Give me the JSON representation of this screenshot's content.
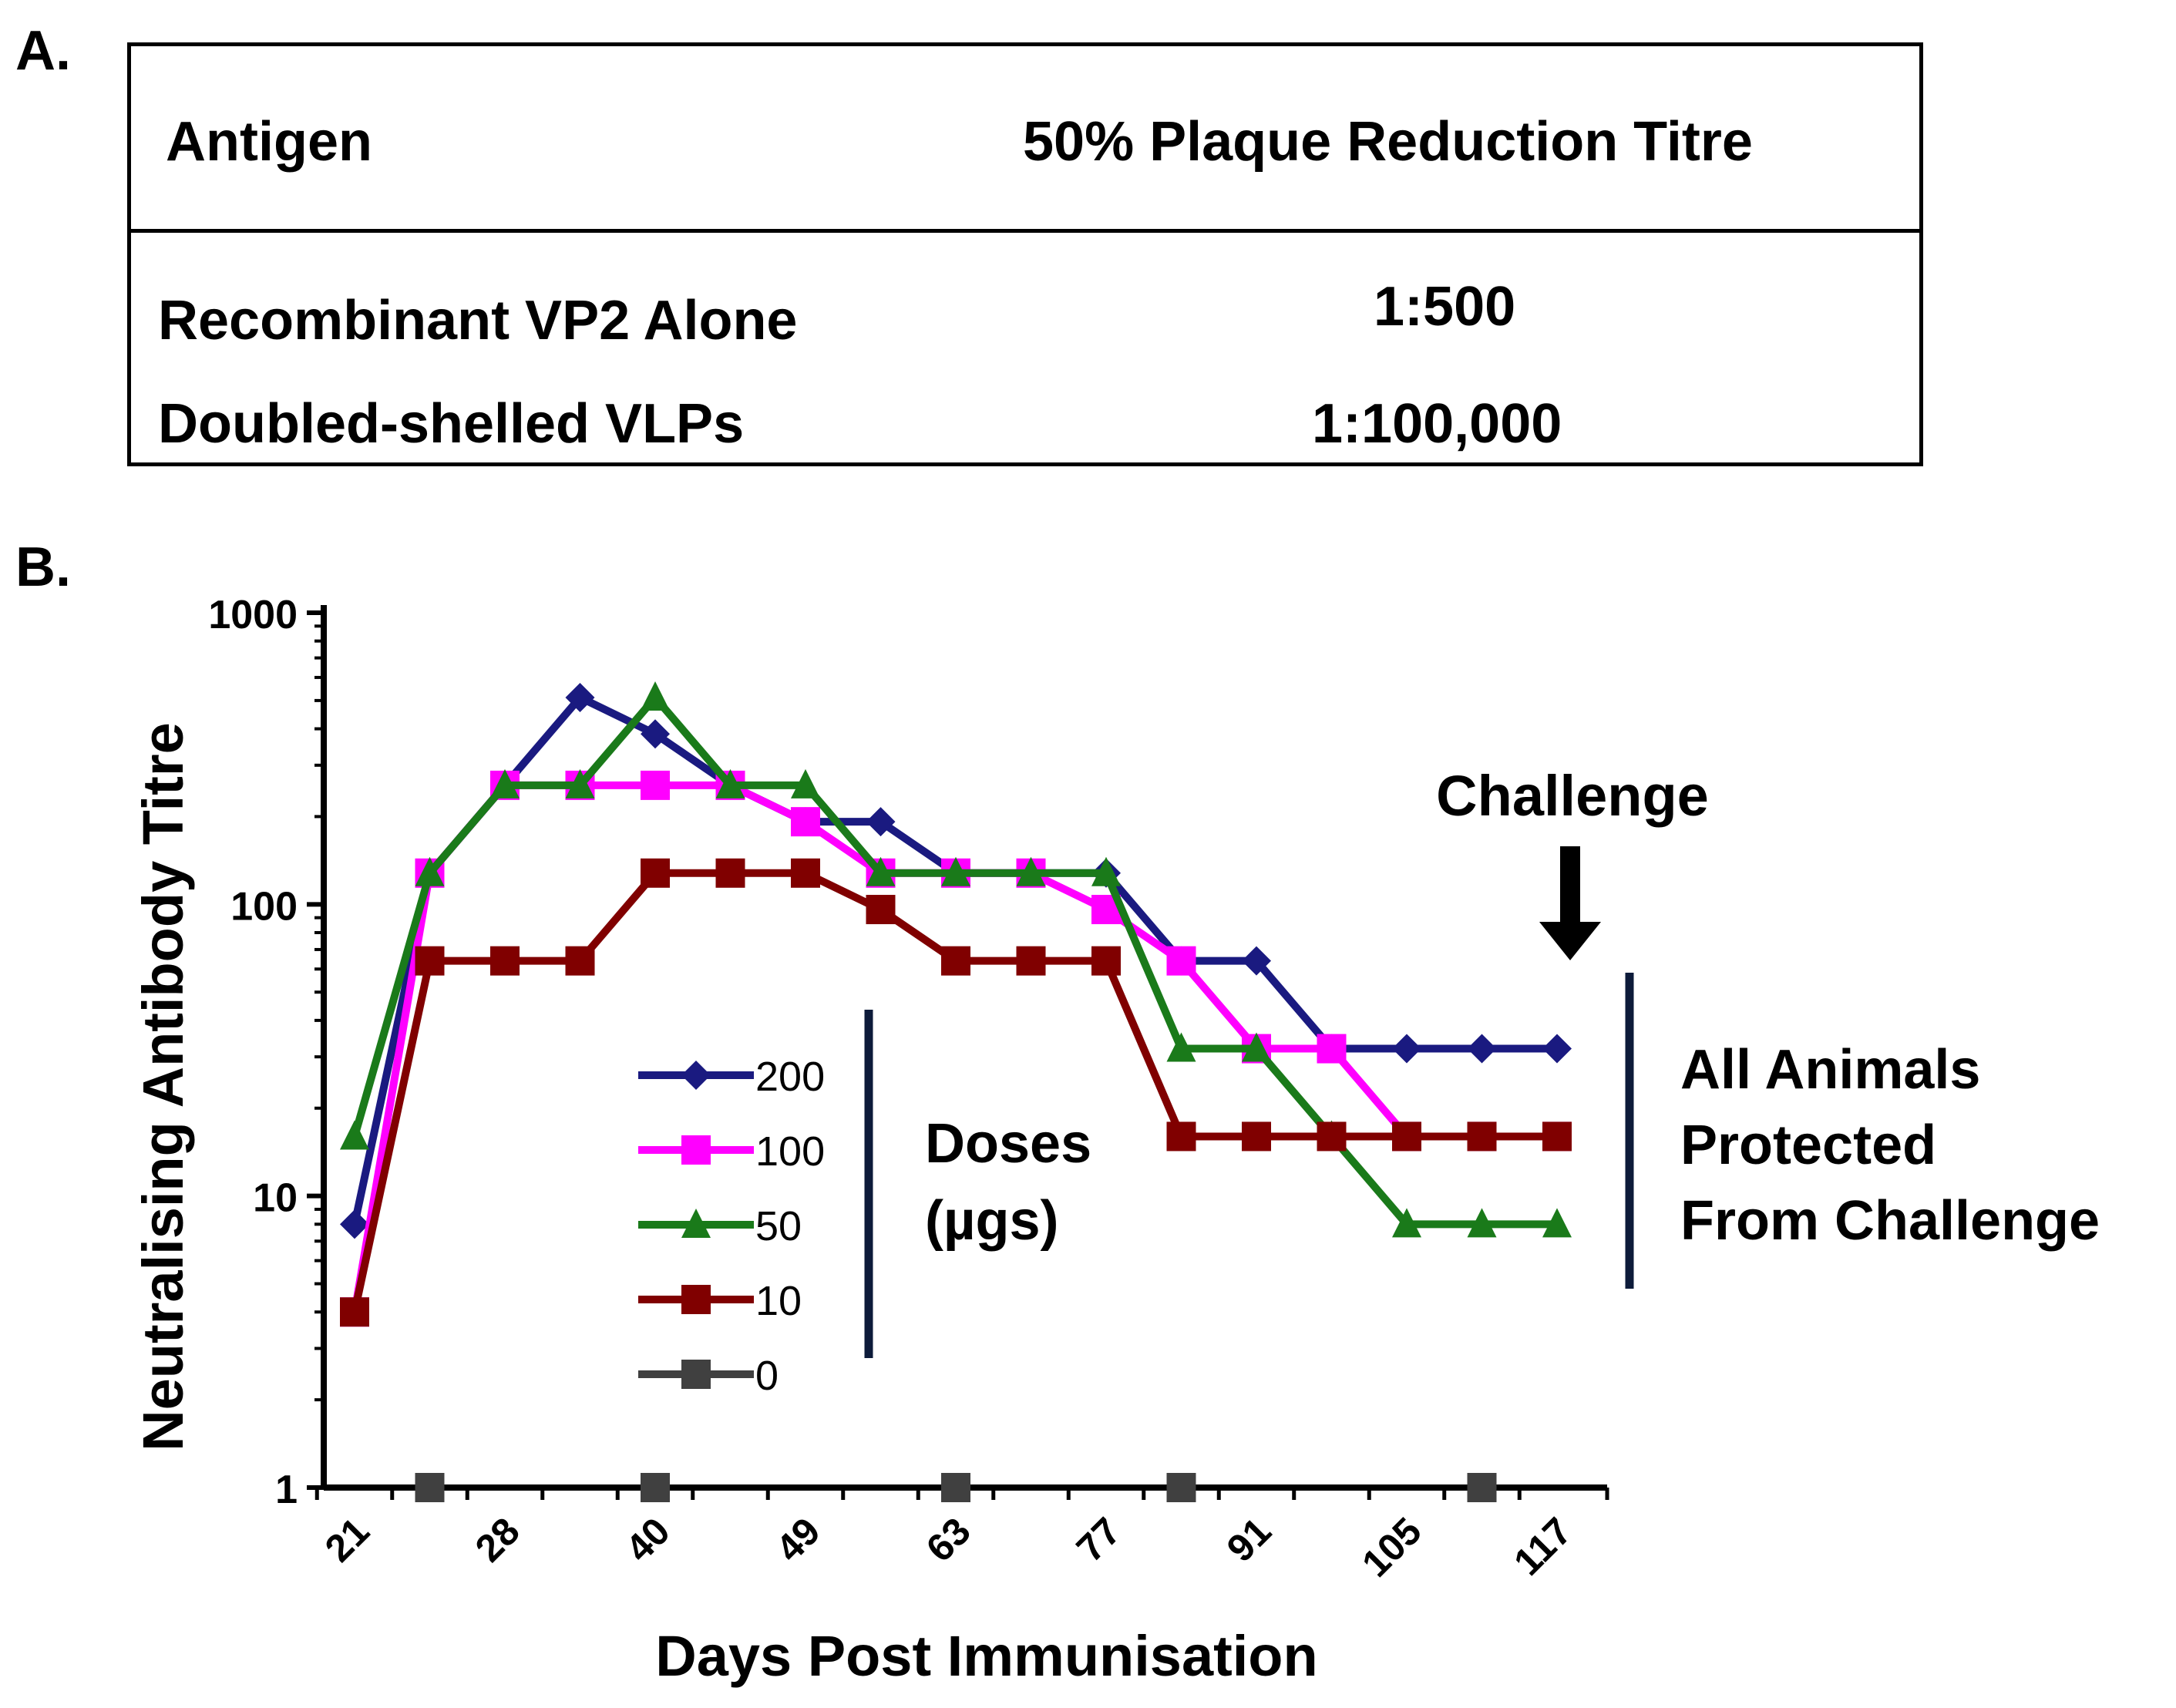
{
  "panel_a": {
    "label": "A.",
    "headers": [
      "Antigen",
      "50% Plaque Reduction Titre"
    ],
    "rows": [
      [
        "Recombinant VP2 Alone",
        "1:500"
      ],
      [
        "Doubled-shelled VLPs",
        "1:100,000"
      ]
    ]
  },
  "panel_b": {
    "label": "B.",
    "annotations": {
      "challenge": "Challenge",
      "doses_line1": "Doses",
      "doses_line2": "(µgs)",
      "protected_line1": "All Animals",
      "protected_line2": "Protected",
      "protected_line3": "From Challenge"
    }
  },
  "chart_data": {
    "type": "line",
    "title": "",
    "xlabel": "Days Post Immunisation",
    "ylabel": "Neutralising Antibody Titre",
    "yscale": "log",
    "ylim": [
      1,
      1000
    ],
    "yticks": [
      1,
      10,
      100,
      1000
    ],
    "x": [
      21,
      24,
      28,
      35,
      40,
      42,
      49,
      56,
      63,
      70,
      77,
      84,
      91,
      98,
      105,
      112,
      117
    ],
    "xticks_shown": [
      21,
      28,
      40,
      49,
      63,
      77,
      91,
      105,
      117
    ],
    "series": [
      {
        "name": "200",
        "color": "#1a1a80",
        "marker": "diamond",
        "x": [
          21,
          24,
          28,
          35,
          40,
          42,
          49,
          56,
          63,
          70,
          77,
          84,
          91,
          98,
          105,
          112,
          117
        ],
        "values": [
          8,
          128,
          256,
          512,
          384,
          256,
          192,
          192,
          128,
          128,
          128,
          64,
          64,
          32,
          32,
          32,
          32
        ]
      },
      {
        "name": "100",
        "color": "#ff00ff",
        "marker": "square",
        "x": [
          21,
          24,
          28,
          35,
          40,
          42,
          49,
          56,
          63,
          70,
          77,
          84,
          91,
          98,
          105,
          112,
          117
        ],
        "values": [
          4,
          128,
          256,
          256,
          256,
          256,
          192,
          128,
          128,
          128,
          96,
          64,
          32,
          32,
          16,
          16,
          16
        ]
      },
      {
        "name": "50",
        "color": "#1a7a1a",
        "marker": "triangle",
        "x": [
          21,
          24,
          28,
          35,
          40,
          42,
          49,
          56,
          63,
          70,
          77,
          84,
          91,
          98,
          105,
          112,
          117
        ],
        "values": [
          16,
          128,
          256,
          256,
          512,
          256,
          256,
          128,
          128,
          128,
          128,
          32,
          32,
          16,
          8,
          8,
          8
        ]
      },
      {
        "name": "10",
        "color": "#800000",
        "marker": "square",
        "x": [
          21,
          24,
          28,
          35,
          40,
          42,
          49,
          56,
          63,
          70,
          77,
          84,
          91,
          98,
          105,
          112,
          117
        ],
        "values": [
          4,
          64,
          64,
          64,
          128,
          128,
          128,
          96,
          64,
          64,
          64,
          16,
          16,
          16,
          16,
          16,
          16
        ]
      },
      {
        "name": "0",
        "color": "#404040",
        "marker": "square",
        "x": [
          24,
          40,
          63,
          84,
          112
        ],
        "values": [
          1,
          1,
          1,
          1,
          1
        ]
      }
    ],
    "legend_title": "Doses (µgs)",
    "legend_position": "center-left"
  }
}
